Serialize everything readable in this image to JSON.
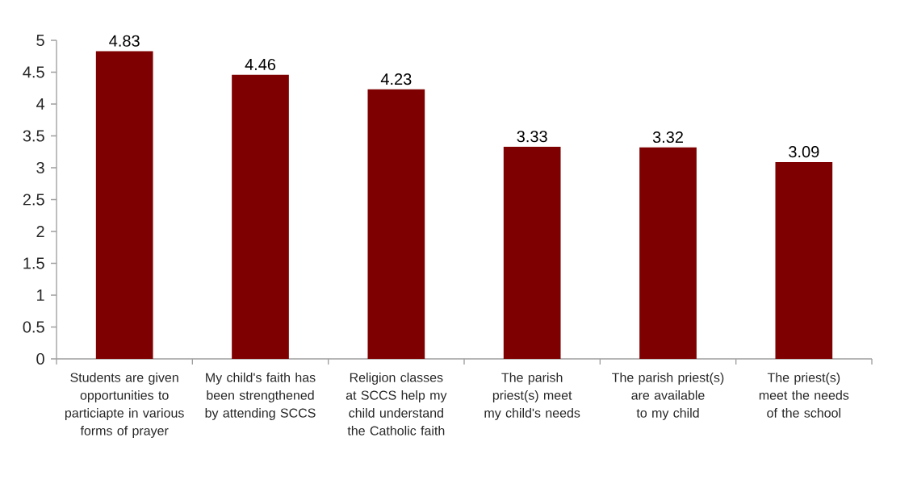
{
  "chart_data": {
    "type": "bar",
    "categories": [
      "Students are given opportunities to particiapte in various forms of prayer",
      "My child's faith has been strengthened by attending SCCS",
      "Religion classes at SCCS help my child understand the Catholic faith",
      "The parish priest(s) meet my child's needs",
      "The parish priest(s) are available to my child",
      "The priest(s) meet the needs of the school"
    ],
    "values": [
      4.83,
      4.46,
      4.23,
      3.33,
      3.32,
      3.09
    ],
    "color": "#7f0000",
    "ylim": [
      0,
      5
    ],
    "yticks": [
      0,
      0.5,
      1,
      1.5,
      2,
      2.5,
      3,
      3.5,
      4,
      4.5,
      5
    ],
    "data_labels": true
  }
}
